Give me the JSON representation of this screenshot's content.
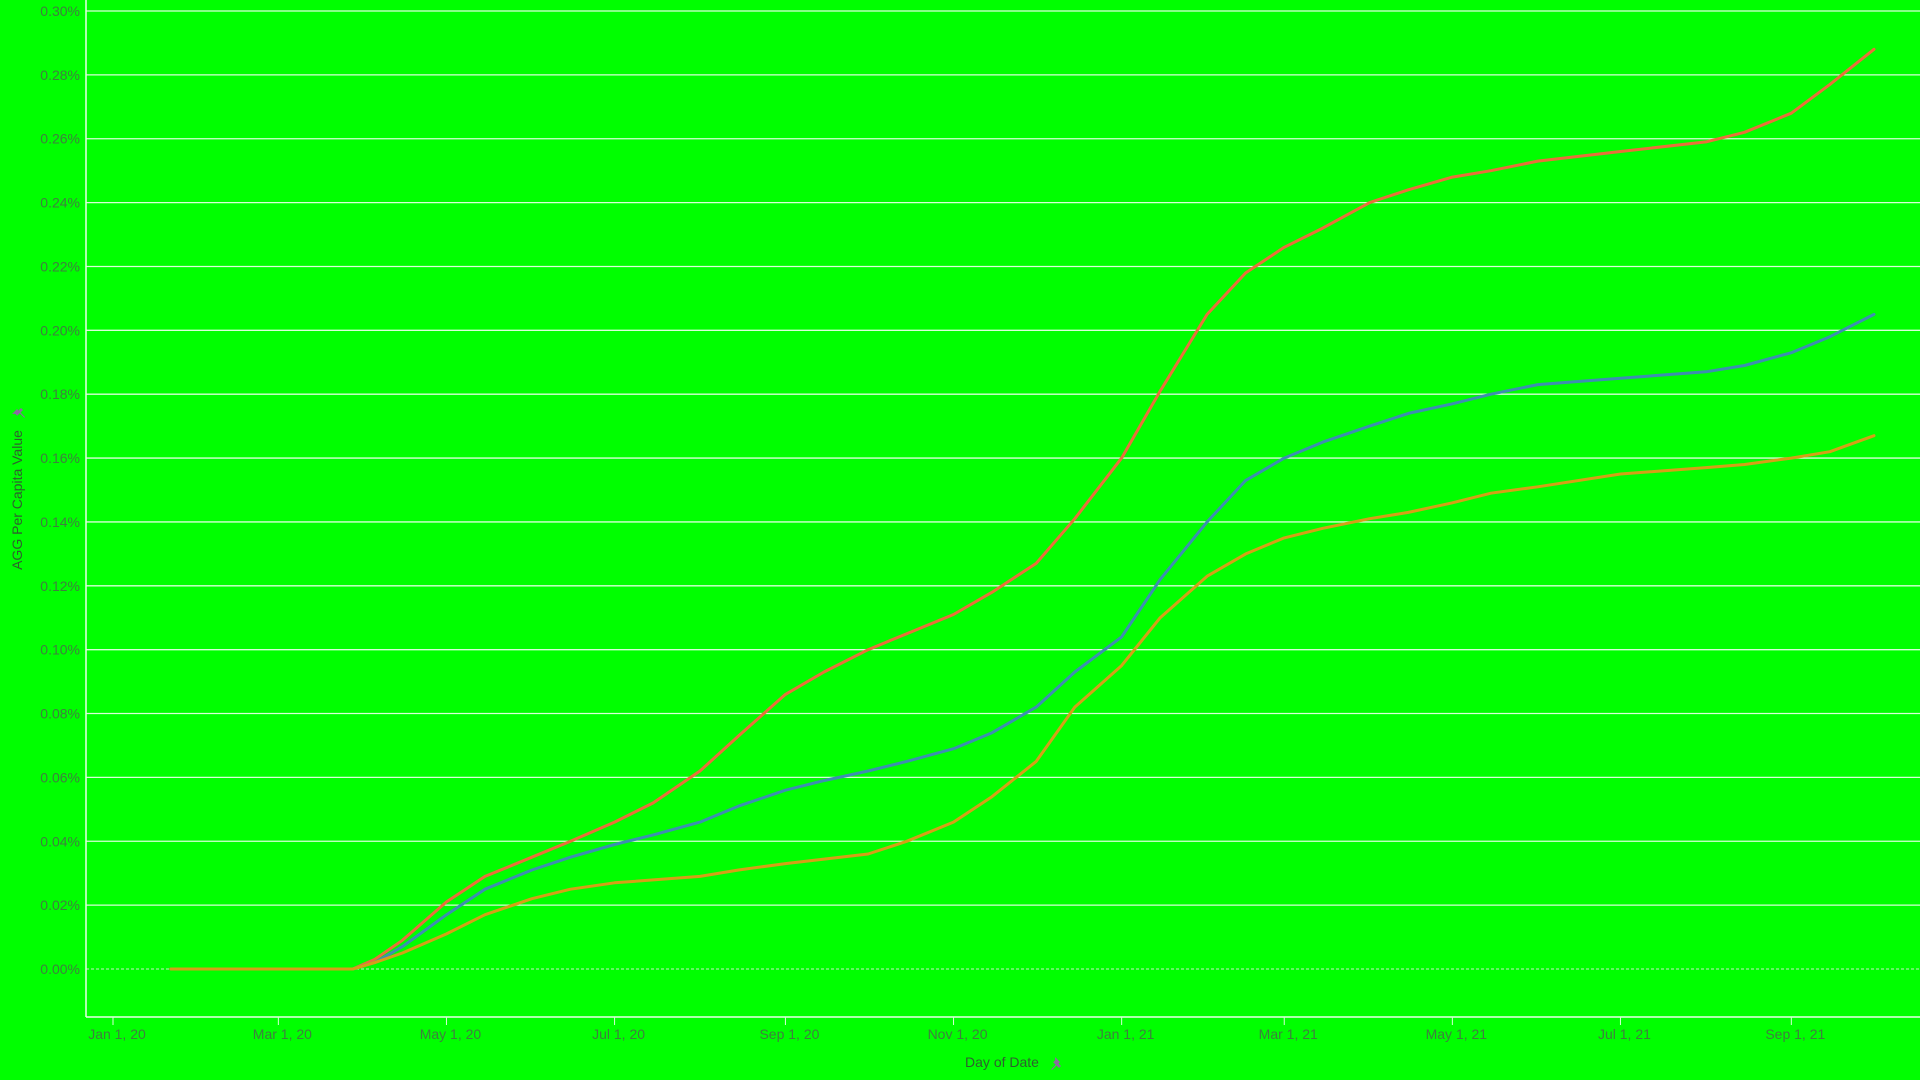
{
  "chart_data": {
    "type": "line",
    "xlabel": "Day of Date",
    "ylabel": "AGG Per Capita Value",
    "x_axis": {
      "start": "2020-01-01",
      "end": "2021-10-31",
      "tick_labels": [
        "Jan 1, 20",
        "Mar 1, 20",
        "May 1, 20",
        "Jul 1, 20",
        "Sep 1, 20",
        "Nov 1, 20",
        "Jan 1, 21",
        "Mar 1, 21",
        "May 1, 21",
        "Jul 1, 21",
        "Sep 1, 21"
      ],
      "tick_dates": [
        "2020-01-01",
        "2020-03-01",
        "2020-05-01",
        "2020-07-01",
        "2020-09-01",
        "2020-11-01",
        "2021-01-01",
        "2021-03-01",
        "2021-05-01",
        "2021-07-01",
        "2021-09-01"
      ]
    },
    "y_axis": {
      "min": -0.014,
      "max": 0.3,
      "unit": "%",
      "tick_values": [
        0.0,
        0.02,
        0.04,
        0.06,
        0.08,
        0.1,
        0.12,
        0.14,
        0.16,
        0.18,
        0.2,
        0.22,
        0.24,
        0.26,
        0.28,
        0.3
      ],
      "tick_labels": [
        "0.00%",
        "0.02%",
        "0.04%",
        "0.06%",
        "0.08%",
        "0.10%",
        "0.12%",
        "0.14%",
        "0.16%",
        "0.18%",
        "0.20%",
        "0.22%",
        "0.24%",
        "0.26%",
        "0.28%",
        "0.30%"
      ]
    },
    "grid": true,
    "legend": "none",
    "series": [
      {
        "color": "#e8703a",
        "points": [
          [
            "2020-01-22",
            0.0
          ],
          [
            "2020-03-01",
            0.0
          ],
          [
            "2020-03-28",
            0.0
          ],
          [
            "2020-04-05",
            0.003
          ],
          [
            "2020-04-15",
            0.009
          ],
          [
            "2020-05-01",
            0.021
          ],
          [
            "2020-05-15",
            0.029
          ],
          [
            "2020-06-01",
            0.035
          ],
          [
            "2020-06-15",
            0.04
          ],
          [
            "2020-07-01",
            0.046
          ],
          [
            "2020-07-15",
            0.052
          ],
          [
            "2020-08-01",
            0.062
          ],
          [
            "2020-08-15",
            0.073
          ],
          [
            "2020-09-01",
            0.086
          ],
          [
            "2020-09-15",
            0.093
          ],
          [
            "2020-10-01",
            0.1
          ],
          [
            "2020-10-15",
            0.105
          ],
          [
            "2020-11-01",
            0.111
          ],
          [
            "2020-11-15",
            0.118
          ],
          [
            "2020-12-01",
            0.127
          ],
          [
            "2020-12-15",
            0.141
          ],
          [
            "2021-01-01",
            0.16
          ],
          [
            "2021-01-15",
            0.181
          ],
          [
            "2021-02-01",
            0.205
          ],
          [
            "2021-02-15",
            0.218
          ],
          [
            "2021-03-01",
            0.226
          ],
          [
            "2021-03-15",
            0.232
          ],
          [
            "2021-04-01",
            0.24
          ],
          [
            "2021-04-15",
            0.244
          ],
          [
            "2021-05-01",
            0.248
          ],
          [
            "2021-05-15",
            0.25
          ],
          [
            "2021-06-01",
            0.253
          ],
          [
            "2021-07-01",
            0.256
          ],
          [
            "2021-08-01",
            0.259
          ],
          [
            "2021-08-15",
            0.262
          ],
          [
            "2021-09-01",
            0.268
          ],
          [
            "2021-09-15",
            0.277
          ],
          [
            "2021-10-01",
            0.288
          ]
        ]
      },
      {
        "color": "#3d8fb0",
        "points": [
          [
            "2020-01-22",
            0.0
          ],
          [
            "2020-03-01",
            0.0
          ],
          [
            "2020-03-28",
            0.0
          ],
          [
            "2020-04-05",
            0.002
          ],
          [
            "2020-04-15",
            0.007
          ],
          [
            "2020-05-01",
            0.017
          ],
          [
            "2020-05-15",
            0.025
          ],
          [
            "2020-06-01",
            0.031
          ],
          [
            "2020-06-15",
            0.035
          ],
          [
            "2020-07-01",
            0.039
          ],
          [
            "2020-07-15",
            0.042
          ],
          [
            "2020-08-01",
            0.046
          ],
          [
            "2020-08-15",
            0.051
          ],
          [
            "2020-09-01",
            0.056
          ],
          [
            "2020-09-15",
            0.059
          ],
          [
            "2020-10-01",
            0.062
          ],
          [
            "2020-10-15",
            0.065
          ],
          [
            "2020-11-01",
            0.069
          ],
          [
            "2020-11-15",
            0.074
          ],
          [
            "2020-12-01",
            0.082
          ],
          [
            "2020-12-15",
            0.093
          ],
          [
            "2021-01-01",
            0.104
          ],
          [
            "2021-01-15",
            0.122
          ],
          [
            "2021-02-01",
            0.14
          ],
          [
            "2021-02-15",
            0.153
          ],
          [
            "2021-03-01",
            0.16
          ],
          [
            "2021-03-15",
            0.165
          ],
          [
            "2021-04-01",
            0.17
          ],
          [
            "2021-04-15",
            0.174
          ],
          [
            "2021-05-01",
            0.177
          ],
          [
            "2021-05-15",
            0.18
          ],
          [
            "2021-06-01",
            0.183
          ],
          [
            "2021-07-01",
            0.185
          ],
          [
            "2021-08-01",
            0.187
          ],
          [
            "2021-08-15",
            0.189
          ],
          [
            "2021-09-01",
            0.193
          ],
          [
            "2021-09-15",
            0.198
          ],
          [
            "2021-10-01",
            0.205
          ]
        ]
      },
      {
        "color": "#d4a017",
        "points": [
          [
            "2020-01-22",
            0.0
          ],
          [
            "2020-03-01",
            0.0
          ],
          [
            "2020-03-28",
            0.0
          ],
          [
            "2020-04-05",
            0.002
          ],
          [
            "2020-04-15",
            0.005
          ],
          [
            "2020-05-01",
            0.011
          ],
          [
            "2020-05-15",
            0.017
          ],
          [
            "2020-06-01",
            0.022
          ],
          [
            "2020-06-15",
            0.025
          ],
          [
            "2020-07-01",
            0.027
          ],
          [
            "2020-08-01",
            0.029
          ],
          [
            "2020-08-15",
            0.031
          ],
          [
            "2020-09-01",
            0.033
          ],
          [
            "2020-10-01",
            0.036
          ],
          [
            "2020-10-15",
            0.04
          ],
          [
            "2020-11-01",
            0.046
          ],
          [
            "2020-11-15",
            0.054
          ],
          [
            "2020-12-01",
            0.065
          ],
          [
            "2020-12-15",
            0.082
          ],
          [
            "2021-01-01",
            0.095
          ],
          [
            "2021-01-15",
            0.11
          ],
          [
            "2021-02-01",
            0.123
          ],
          [
            "2021-02-15",
            0.13
          ],
          [
            "2021-03-01",
            0.135
          ],
          [
            "2021-03-15",
            0.138
          ],
          [
            "2021-04-01",
            0.141
          ],
          [
            "2021-04-15",
            0.143
          ],
          [
            "2021-05-01",
            0.146
          ],
          [
            "2021-05-15",
            0.149
          ],
          [
            "2021-06-01",
            0.151
          ],
          [
            "2021-07-01",
            0.155
          ],
          [
            "2021-08-01",
            0.157
          ],
          [
            "2021-08-15",
            0.158
          ],
          [
            "2021-09-01",
            0.16
          ],
          [
            "2021-09-15",
            0.162
          ],
          [
            "2021-10-01",
            0.167
          ]
        ]
      }
    ]
  }
}
